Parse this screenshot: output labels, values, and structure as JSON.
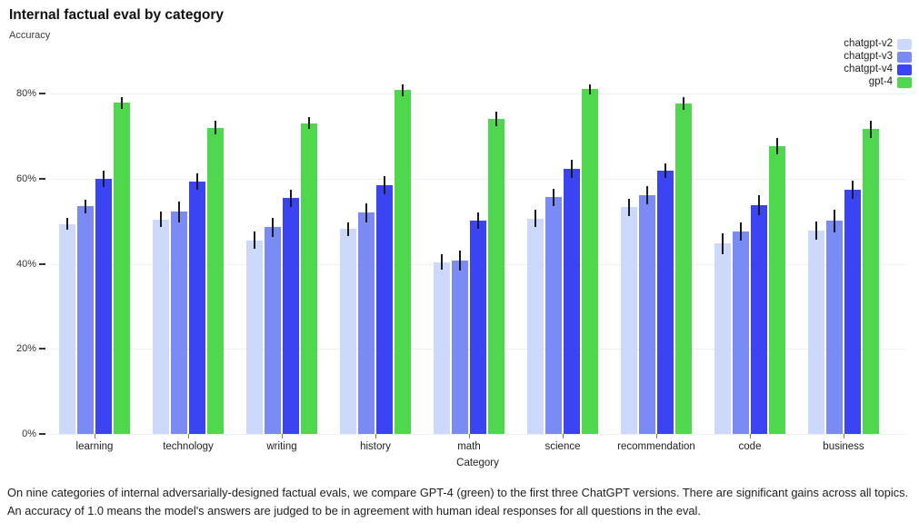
{
  "header": {
    "title": "Internal factual eval by category",
    "subtitle": "Accuracy"
  },
  "caption": "On nine categories of internal adversarially-designed factual evals, we compare GPT-4 (green) to the first three ChatGPT versions. There are significant gains across all topics. An accuracy of 1.0 means the model's answers are judged to be in agreement with human ideal responses for all questions in the eval.",
  "chart_data": {
    "type": "bar",
    "title": "Internal factual eval by category",
    "xlabel": "Category",
    "ylabel": "Accuracy",
    "categories": [
      "learning",
      "technology",
      "writing",
      "history",
      "math",
      "science",
      "recommendation",
      "code",
      "business"
    ],
    "series": [
      {
        "name": "chatgpt-v2",
        "color": "#ccd9fb",
        "values": [
          0.493,
          0.504,
          0.455,
          0.482,
          0.404,
          0.506,
          0.533,
          0.447,
          0.478
        ],
        "errors": [
          0.014,
          0.018,
          0.02,
          0.016,
          0.018,
          0.02,
          0.02,
          0.024,
          0.022
        ]
      },
      {
        "name": "chatgpt-v3",
        "color": "#7a8bf5",
        "values": [
          0.535,
          0.522,
          0.486,
          0.52,
          0.407,
          0.556,
          0.561,
          0.476,
          0.501
        ],
        "errors": [
          0.016,
          0.025,
          0.022,
          0.022,
          0.024,
          0.02,
          0.022,
          0.022,
          0.027
        ]
      },
      {
        "name": "chatgpt-v4",
        "color": "#3b44f2",
        "values": [
          0.6,
          0.593,
          0.554,
          0.585,
          0.502,
          0.623,
          0.618,
          0.538,
          0.574
        ],
        "errors": [
          0.019,
          0.019,
          0.02,
          0.021,
          0.019,
          0.022,
          0.017,
          0.024,
          0.022
        ]
      },
      {
        "name": "gpt-4",
        "color": "#4fd84e",
        "values": [
          0.778,
          0.72,
          0.73,
          0.808,
          0.74,
          0.81,
          0.777,
          0.676,
          0.716
        ],
        "errors": [
          0.014,
          0.016,
          0.014,
          0.014,
          0.017,
          0.012,
          0.015,
          0.019,
          0.02
        ]
      }
    ],
    "yticks": [
      0,
      0.2,
      0.4,
      0.6,
      0.8
    ],
    "ytick_labels": [
      "0%",
      "20%",
      "40%",
      "60%",
      "80%"
    ],
    "ylim": [
      0,
      0.8384
    ],
    "grid": true,
    "legend_position": "top-right"
  }
}
